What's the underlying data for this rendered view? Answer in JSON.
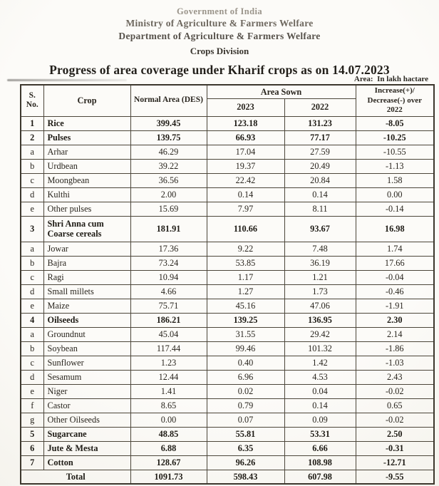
{
  "header": {
    "line1": "Government of India",
    "line2": "Ministry of Agriculture & Farmers Welfare",
    "line3": "Department of Agriculture & Farmers Welfare",
    "line4": "Crops Division",
    "title": "Progress of area coverage under Kharif crops as on 14.07.2023",
    "unit_note": "Area:  In lakh hactare"
  },
  "table": {
    "headers": {
      "sno": "S.\nNo.",
      "crop": "Crop",
      "normal_area": "Normal Area (DES)",
      "area_sown": "Area Sown",
      "year_2023": "2023",
      "year_2022": "2022",
      "increase": "Increase(+)/\nDecrease(-) over\n2022"
    },
    "rows": [
      {
        "sno": "1",
        "crop": "Rice",
        "normal": "399.45",
        "sown_2023": "123.18",
        "sown_2022": "131.23",
        "change": "-8.05",
        "bold": true
      },
      {
        "sno": "2",
        "crop": "Pulses",
        "normal": "139.75",
        "sown_2023": "66.93",
        "sown_2022": "77.17",
        "change": "-10.25",
        "bold": true
      },
      {
        "sno": "a",
        "crop": "Arhar",
        "normal": "46.29",
        "sown_2023": "17.04",
        "sown_2022": "27.59",
        "change": "-10.55"
      },
      {
        "sno": "b",
        "crop": "Urdbean",
        "normal": "39.22",
        "sown_2023": "19.37",
        "sown_2022": "20.49",
        "change": "-1.13"
      },
      {
        "sno": "c",
        "crop": "Moongbean",
        "normal": "36.56",
        "sown_2023": "22.42",
        "sown_2022": "20.84",
        "change": "1.58"
      },
      {
        "sno": "d",
        "crop": "Kulthi",
        "normal": "2.00",
        "sown_2023": "0.14",
        "sown_2022": "0.14",
        "change": "0.00"
      },
      {
        "sno": "e",
        "crop": "Other pulses",
        "normal": "15.69",
        "sown_2023": "7.97",
        "sown_2022": "8.11",
        "change": "-0.14"
      },
      {
        "sno": "3",
        "crop": "Shri Anna cum Coarse cereals",
        "normal": "181.91",
        "sown_2023": "110.66",
        "sown_2022": "93.67",
        "change": "16.98",
        "bold": true,
        "tall": true
      },
      {
        "sno": "a",
        "crop": "Jowar",
        "normal": "17.36",
        "sown_2023": "9.22",
        "sown_2022": "7.48",
        "change": "1.74"
      },
      {
        "sno": "b",
        "crop": "Bajra",
        "normal": "73.24",
        "sown_2023": "53.85",
        "sown_2022": "36.19",
        "change": "17.66"
      },
      {
        "sno": "c",
        "crop": "Ragi",
        "normal": "10.94",
        "sown_2023": "1.17",
        "sown_2022": "1.21",
        "change": "-0.04"
      },
      {
        "sno": "d",
        "crop": "Small millets",
        "normal": "4.66",
        "sown_2023": "1.27",
        "sown_2022": "1.73",
        "change": "-0.46"
      },
      {
        "sno": "e",
        "crop": "Maize",
        "normal": "75.71",
        "sown_2023": "45.16",
        "sown_2022": "47.06",
        "change": "-1.91"
      },
      {
        "sno": "4",
        "crop": "Oilseeds",
        "normal": "186.21",
        "sown_2023": "139.25",
        "sown_2022": "136.95",
        "change": "2.30",
        "bold": true
      },
      {
        "sno": "a",
        "crop": "Groundnut",
        "normal": "45.04",
        "sown_2023": "31.55",
        "sown_2022": "29.42",
        "change": "2.14"
      },
      {
        "sno": "b",
        "crop": "Soybean",
        "normal": "117.44",
        "sown_2023": "99.46",
        "sown_2022": "101.32",
        "change": "-1.86"
      },
      {
        "sno": "c",
        "crop": "Sunflower",
        "normal": "1.23",
        "sown_2023": "0.40",
        "sown_2022": "1.42",
        "change": "-1.03"
      },
      {
        "sno": "d",
        "crop": "Sesamum",
        "normal": "12.44",
        "sown_2023": "6.96",
        "sown_2022": "4.53",
        "change": "2.43"
      },
      {
        "sno": "e",
        "crop": "Niger",
        "normal": "1.41",
        "sown_2023": "0.02",
        "sown_2022": "0.04",
        "change": "-0.02"
      },
      {
        "sno": "f",
        "crop": "Castor",
        "normal": "8.65",
        "sown_2023": "0.79",
        "sown_2022": "0.14",
        "change": "0.65"
      },
      {
        "sno": "g",
        "crop": "Other Oilseeds",
        "normal": "0.00",
        "sown_2023": "0.07",
        "sown_2022": "0.09",
        "change": "-0.02"
      },
      {
        "sno": "5",
        "crop": "Sugarcane",
        "normal": "48.85",
        "sown_2023": "55.81",
        "sown_2022": "53.31",
        "change": "2.50",
        "bold": true
      },
      {
        "sno": "6",
        "crop": "Jute & Mesta",
        "normal": "6.88",
        "sown_2023": "6.35",
        "sown_2022": "6.66",
        "change": "-0.31",
        "bold": true
      },
      {
        "sno": "7",
        "crop": "Cotton",
        "normal": "128.67",
        "sown_2023": "96.26",
        "sown_2022": "108.98",
        "change": "-12.71",
        "bold": true
      },
      {
        "sno": "",
        "crop": "Total",
        "normal": "1091.73",
        "sown_2023": "598.43",
        "sown_2022": "607.98",
        "change": "-9.55",
        "bold": true,
        "total": true
      }
    ]
  }
}
